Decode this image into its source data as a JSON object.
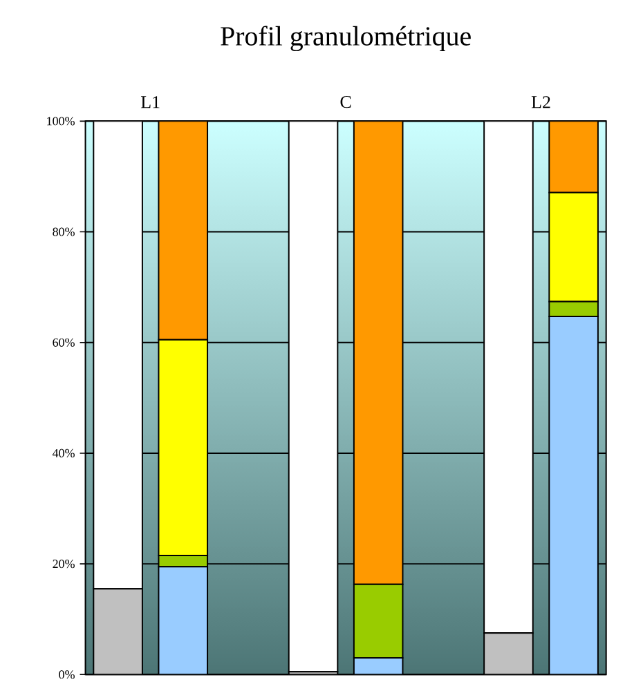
{
  "chart_data": {
    "type": "bar",
    "title": "Profil granulométrique",
    "stacked": true,
    "categories": [
      "L1",
      null,
      null,
      "C",
      null,
      null,
      "L2",
      null
    ],
    "series": [
      {
        "color": "#c0c0c0",
        "values": [
          15.5,
          null,
          null,
          0.5,
          null,
          null,
          7.5,
          null
        ]
      },
      {
        "color": "#ffffff",
        "values": [
          84.5,
          null,
          null,
          99.5,
          null,
          null,
          92.5,
          null
        ]
      },
      {
        "color": "#99ccff",
        "values": [
          null,
          19.5,
          null,
          null,
          3,
          null,
          null,
          64.7
        ]
      },
      {
        "color": "#99cc00",
        "values": [
          null,
          2,
          null,
          null,
          13.3,
          null,
          null,
          2.7
        ]
      },
      {
        "color": "#ffff00",
        "values": [
          null,
          39,
          null,
          null,
          null,
          null,
          null,
          19.7
        ]
      },
      {
        "color": "#ff9900",
        "values": [
          null,
          39.5,
          null,
          null,
          83.7,
          null,
          null,
          12.9
        ]
      }
    ],
    "ylim": [
      0,
      100
    ],
    "yticks": [
      {
        "value": 0,
        "label": "0%"
      },
      {
        "value": 20,
        "label": "20%"
      },
      {
        "value": 40,
        "label": "40%"
      },
      {
        "value": 60,
        "label": "60%"
      },
      {
        "value": 80,
        "label": "80%"
      },
      {
        "value": 100,
        "label": "100%"
      }
    ],
    "grid": "y"
  }
}
